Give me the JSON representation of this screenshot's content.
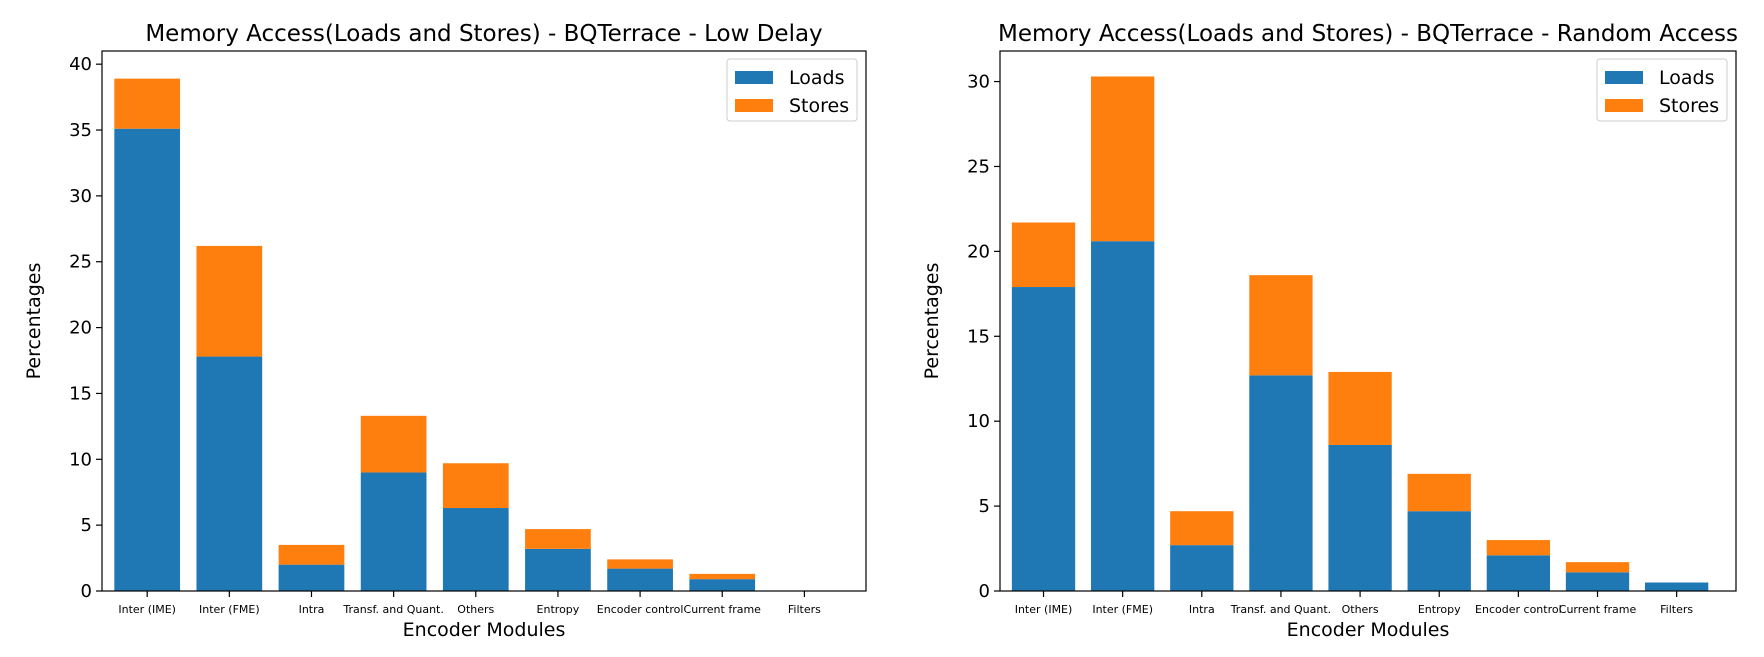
{
  "colors": {
    "loads": "#1f77b4",
    "stores": "#ff7f0e"
  },
  "chart_data": [
    {
      "type": "bar",
      "stacked": true,
      "title": "Memory Access(Loads and Stores) - BQTerrace - Low Delay",
      "xlabel": "Encoder Modules",
      "ylabel": "Percentages",
      "ylim": [
        0,
        41
      ],
      "yticks": [
        0,
        5,
        10,
        15,
        20,
        25,
        30,
        35,
        40
      ],
      "legend_position": "top-right",
      "categories": [
        "Inter (IME)",
        "Inter (FME)",
        "Intra",
        "Transf. and Quant.",
        "Others",
        "Entropy",
        "Encoder control",
        "Current frame",
        "Filters"
      ],
      "series": [
        {
          "name": "Loads",
          "values": [
            35.1,
            17.8,
            2.0,
            9.0,
            6.3,
            3.2,
            1.7,
            0.9,
            0.0
          ]
        },
        {
          "name": "Stores",
          "values": [
            3.8,
            8.4,
            1.5,
            4.3,
            3.4,
            1.5,
            0.7,
            0.4,
            0.0
          ]
        }
      ]
    },
    {
      "type": "bar",
      "stacked": true,
      "title": "Memory Access(Loads and Stores) - BQTerrace - Random Access",
      "xlabel": "Encoder Modules",
      "ylabel": "Percentages",
      "ylim": [
        0,
        31.8
      ],
      "yticks": [
        0,
        5,
        10,
        15,
        20,
        25,
        30
      ],
      "legend_position": "top-right",
      "categories": [
        "Inter (IME)",
        "Inter (FME)",
        "Intra",
        "Transf. and Quant.",
        "Others",
        "Entropy",
        "Encoder control",
        "Current frame",
        "Filters"
      ],
      "series": [
        {
          "name": "Loads",
          "values": [
            17.9,
            20.6,
            2.7,
            12.7,
            8.6,
            4.7,
            2.1,
            1.1,
            0.5
          ]
        },
        {
          "name": "Stores",
          "values": [
            3.8,
            9.7,
            2.0,
            5.9,
            4.3,
            2.2,
            0.9,
            0.6,
            0.0
          ]
        }
      ]
    }
  ]
}
